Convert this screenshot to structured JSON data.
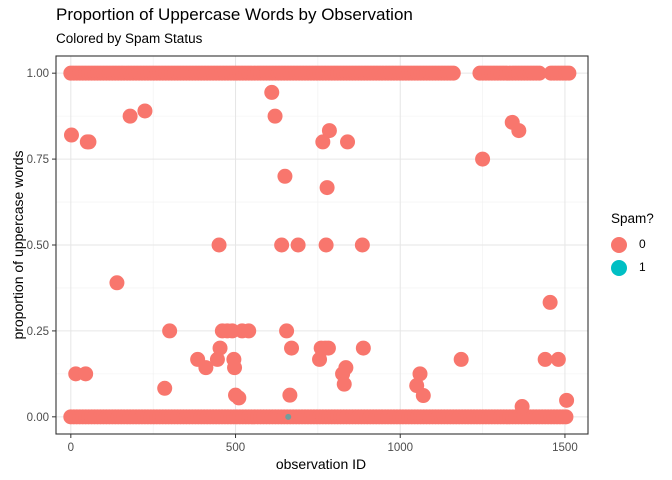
{
  "chart_data": {
    "type": "scatter",
    "title": "Proportion of Uppercase Words by Observation",
    "subtitle": "Colored by Spam Status",
    "xlabel": "observation ID",
    "ylabel": "proportion of uppercase words",
    "xlim": [
      -45,
      1570
    ],
    "ylim": [
      -0.05,
      1.05
    ],
    "x_ticks": [
      0,
      500,
      1000,
      1500
    ],
    "x_tick_labels": [
      "0",
      "500",
      "1000",
      "1500"
    ],
    "y_ticks": [
      0,
      0.25,
      0.5,
      0.75,
      1
    ],
    "y_tick_labels": [
      "0.00",
      "0.25",
      "0.50",
      "0.75",
      "1.00"
    ],
    "grid": true,
    "legend": {
      "title": "Spam?",
      "position": "right",
      "entries": [
        {
          "label": "0",
          "color": "#F8766D"
        },
        {
          "label": "1",
          "color": "#00BFC4"
        }
      ]
    },
    "series": [
      {
        "name": "0",
        "color": "#F8766D",
        "points": [
          [
            2,
            0.82
          ],
          [
            15,
            0.125
          ],
          [
            45,
            0.125
          ],
          [
            50,
            0.8
          ],
          [
            55,
            0.8
          ],
          [
            140,
            0.39
          ],
          [
            180,
            0.875
          ],
          [
            225,
            0.89
          ],
          [
            285,
            0.083
          ],
          [
            300,
            0.25
          ],
          [
            385,
            0.167
          ],
          [
            410,
            0.143
          ],
          [
            445,
            0.167
          ],
          [
            450,
            0.5
          ],
          [
            453,
            0.2
          ],
          [
            460,
            0.25
          ],
          [
            475,
            0.25
          ],
          [
            490,
            0.25
          ],
          [
            495,
            0.167
          ],
          [
            497,
            0.143
          ],
          [
            500,
            0.063
          ],
          [
            510,
            0.055
          ],
          [
            520,
            0.25
          ],
          [
            540,
            0.25
          ],
          [
            610,
            0.944
          ],
          [
            620,
            0.875
          ],
          [
            640,
            0.5
          ],
          [
            650,
            0.7
          ],
          [
            655,
            0.25
          ],
          [
            665,
            0.063
          ],
          [
            670,
            0.2
          ],
          [
            690,
            0.5
          ],
          [
            755,
            0.167
          ],
          [
            760,
            0.2
          ],
          [
            765,
            0.8
          ],
          [
            772,
            0.2
          ],
          [
            775,
            0.5
          ],
          [
            778,
            0.667
          ],
          [
            782,
            0.2
          ],
          [
            785,
            0.833
          ],
          [
            825,
            0.125
          ],
          [
            830,
            0.095
          ],
          [
            835,
            0.143
          ],
          [
            840,
            0.8
          ],
          [
            885,
            0.5
          ],
          [
            888,
            0.2
          ],
          [
            1050,
            0.091
          ],
          [
            1060,
            0.125
          ],
          [
            1070,
            0.062
          ],
          [
            1185,
            0.167
          ],
          [
            1250,
            0.75
          ],
          [
            1340,
            0.857
          ],
          [
            1360,
            0.833
          ],
          [
            1370,
            0.03
          ],
          [
            1440,
            0.167
          ],
          [
            1455,
            0.333
          ],
          [
            1480,
            0.167
          ],
          [
            1505,
            0.048
          ]
        ]
      },
      {
        "name": "1",
        "color": "#00BFC4",
        "points": [
          [
            660,
            0.0
          ]
        ]
      }
    ],
    "band_series": "0",
    "band_y_values": [
      1.0,
      0.0
    ],
    "band_ranges": [
      {
        "y": 1.0,
        "x": [
          0,
          1520
        ],
        "gaps": [
          [
            1165,
            1240
          ],
          [
            1425,
            1455
          ]
        ]
      },
      {
        "y": 0.0,
        "x": [
          0,
          1510
        ],
        "gaps": []
      }
    ]
  }
}
